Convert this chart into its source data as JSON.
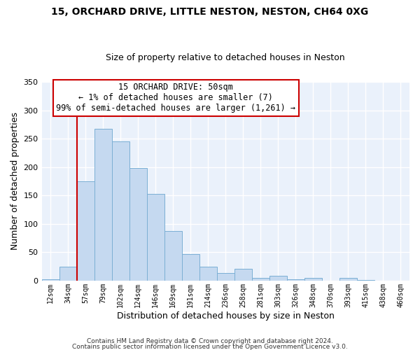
{
  "title": "15, ORCHARD DRIVE, LITTLE NESTON, NESTON, CH64 0XG",
  "subtitle": "Size of property relative to detached houses in Neston",
  "xlabel": "Distribution of detached houses by size in Neston",
  "ylabel": "Number of detached properties",
  "bin_labels": [
    "12sqm",
    "34sqm",
    "57sqm",
    "79sqm",
    "102sqm",
    "124sqm",
    "146sqm",
    "169sqm",
    "191sqm",
    "214sqm",
    "236sqm",
    "258sqm",
    "281sqm",
    "303sqm",
    "326sqm",
    "348sqm",
    "370sqm",
    "393sqm",
    "415sqm",
    "438sqm",
    "460sqm"
  ],
  "bar_values": [
    2,
    24,
    175,
    268,
    245,
    198,
    153,
    88,
    47,
    25,
    14,
    21,
    5,
    8,
    2,
    5,
    0,
    5,
    1,
    0,
    0
  ],
  "bar_color": "#c5d9f0",
  "bar_edge_color": "#7bafd4",
  "vline_color": "#cc0000",
  "annotation_title": "15 ORCHARD DRIVE: 50sqm",
  "annotation_line1": "← 1% of detached houses are smaller (7)",
  "annotation_line2": "99% of semi-detached houses are larger (1,261) →",
  "annotation_box_color": "#ffffff",
  "annotation_box_edge": "#cc0000",
  "ylim": [
    0,
    350
  ],
  "yticks": [
    0,
    50,
    100,
    150,
    200,
    250,
    300,
    350
  ],
  "bg_color": "#eaf1fb",
  "fig_bg_color": "#ffffff",
  "footer1": "Contains HM Land Registry data © Crown copyright and database right 2024.",
  "footer2": "Contains public sector information licensed under the Open Government Licence v3.0."
}
